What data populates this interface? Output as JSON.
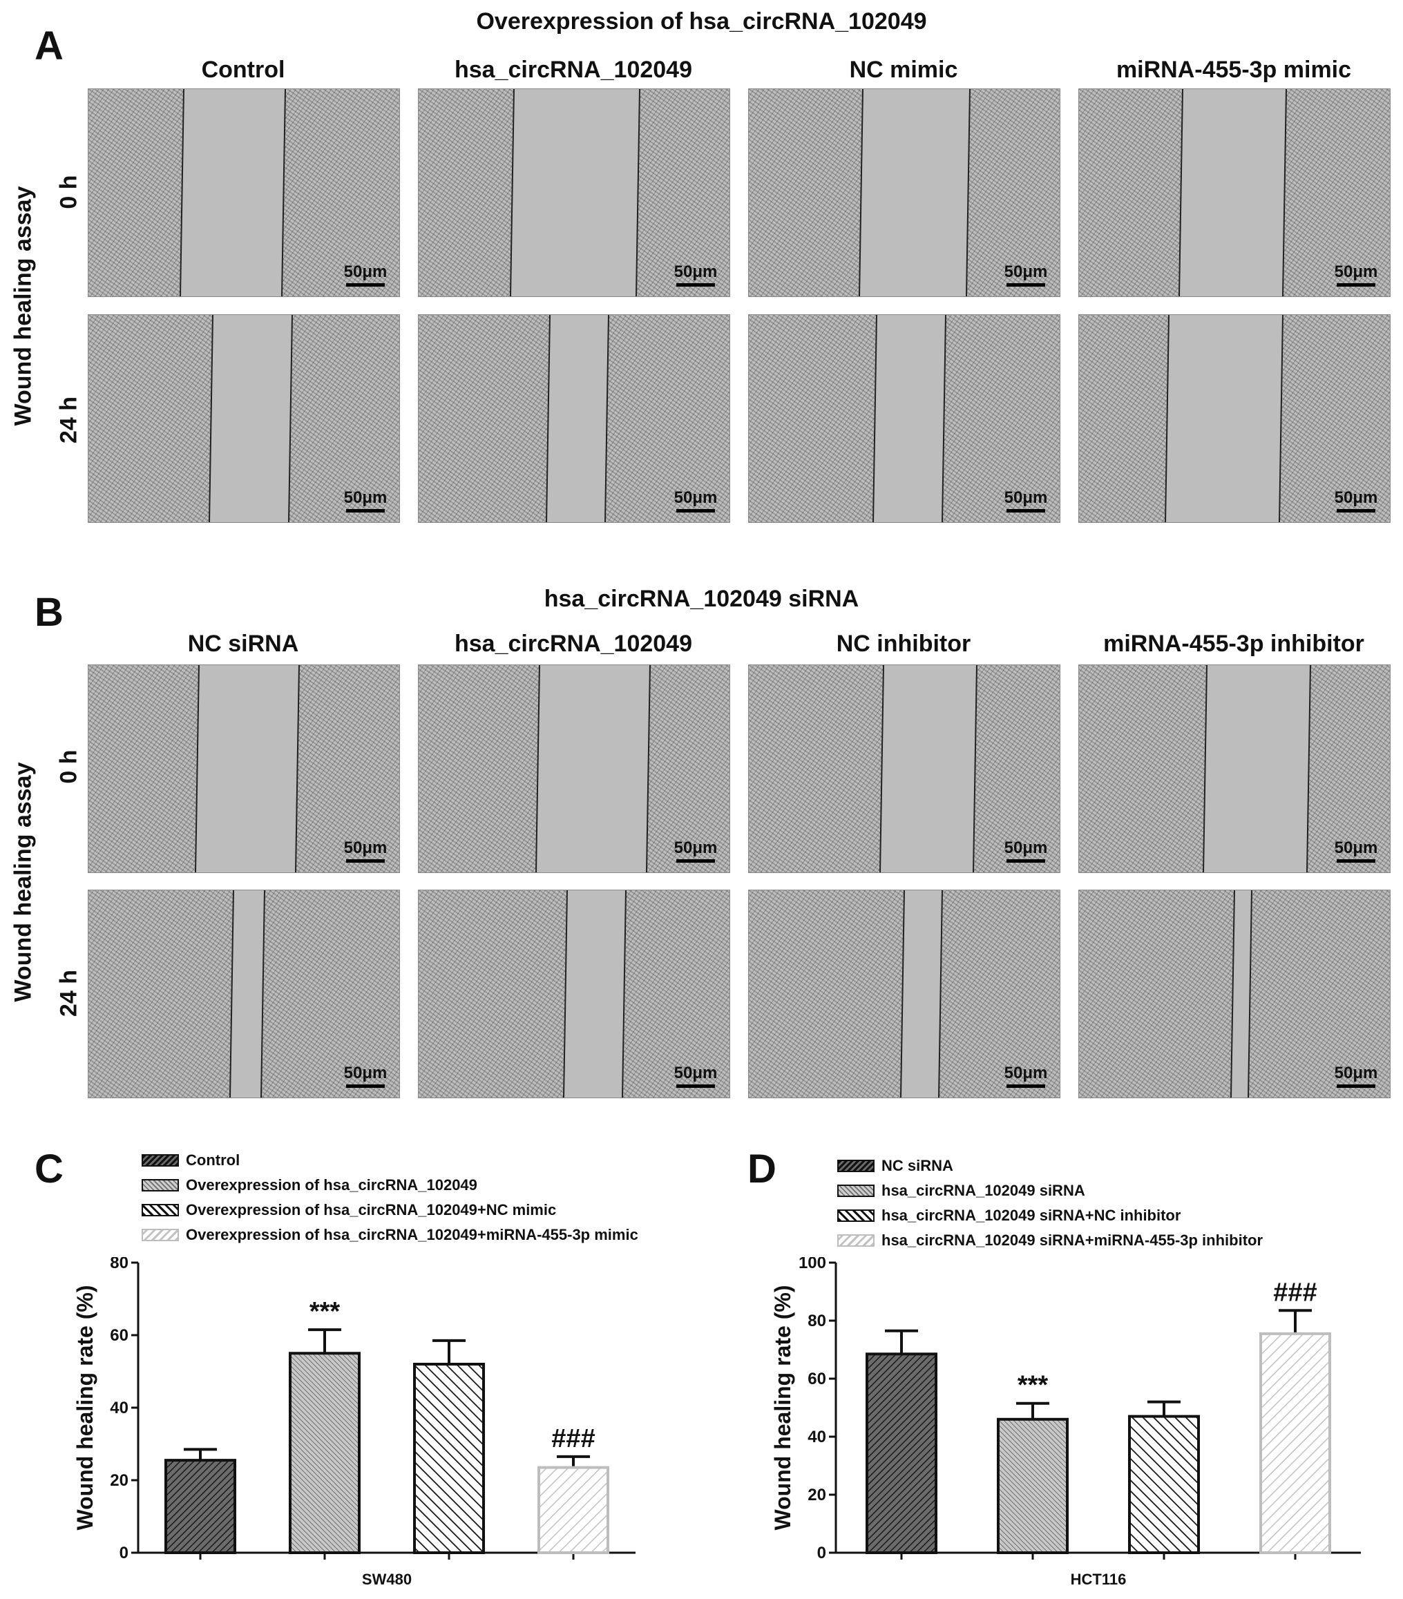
{
  "panels": {
    "A": {
      "letter": "A",
      "title": "Overexpression of hsa_circRNA_102049",
      "row_axis_label": "Wound healing assay",
      "columns": [
        "Control",
        "hsa_circRNA_102049",
        "NC mimic",
        "miRNA-455-3p mimic"
      ],
      "rows": [
        "0 h",
        "24 h"
      ],
      "scale_bar": "50μm"
    },
    "B": {
      "letter": "B",
      "title": "hsa_circRNA_102049 siRNA",
      "row_axis_label": "Wound healing assay",
      "columns": [
        "NC siRNA",
        "hsa_circRNA_102049",
        "NC inhibitor",
        "miRNA-455-3p inhibitor"
      ],
      "rows": [
        "0 h",
        "24 h"
      ],
      "scale_bar": "50μm"
    },
    "C": {
      "letter": "C"
    },
    "D": {
      "letter": "D"
    }
  },
  "chart_data": [
    {
      "type": "bar",
      "panel": "C",
      "categories": [
        "Control",
        "Overexpression of hsa_circRNA_102049",
        "Overexpression of hsa_circRNA_102049+NC mimic",
        "Overexpression of hsa_circRNA_102049+miRNA-455-3p mimic"
      ],
      "values": [
        25.5,
        55,
        52,
        23.5
      ],
      "errors": [
        3,
        6.5,
        6.5,
        3
      ],
      "annotations": [
        "",
        "***",
        "",
        "###"
      ],
      "xlabel": "SW480",
      "ylabel": "Wound healing rate (%)",
      "ylim": [
        0,
        80
      ],
      "yticks": [
        0,
        20,
        40,
        60,
        80
      ],
      "legend": "top",
      "fill_colors": [
        "#6b6b6b",
        "#c8c8c8",
        "#ffffff",
        "#ffffff"
      ],
      "hatch_colors": [
        "#1a1a1a",
        "#6e6e6e",
        "#111111",
        "#c2c2c2"
      ],
      "border_colors": [
        "#111111",
        "#111111",
        "#111111",
        "#bdbdbd"
      ],
      "hatch_styles": [
        "dense-forward",
        "dense-back",
        "back",
        "forward"
      ]
    },
    {
      "type": "bar",
      "panel": "D",
      "categories": [
        "NC siRNA",
        "hsa_circRNA_102049 siRNA",
        "hsa_circRNA_102049 siRNA+NC inhibitor",
        "hsa_circRNA_102049 siRNA+miRNA-455-3p inhibitor"
      ],
      "values": [
        68.5,
        46,
        47,
        75.5
      ],
      "errors": [
        8,
        5.5,
        5,
        8
      ],
      "annotations": [
        "",
        "***",
        "",
        "###"
      ],
      "xlabel": "HCT116",
      "ylabel": "Wound healing rate (%)",
      "ylim": [
        0,
        100
      ],
      "yticks": [
        0,
        20,
        40,
        60,
        80,
        100
      ],
      "legend": "top",
      "fill_colors": [
        "#6b6b6b",
        "#c8c8c8",
        "#ffffff",
        "#ffffff"
      ],
      "hatch_colors": [
        "#1a1a1a",
        "#6e6e6e",
        "#111111",
        "#c2c2c2"
      ],
      "border_colors": [
        "#111111",
        "#111111",
        "#111111",
        "#bdbdbd"
      ],
      "hatch_styles": [
        "dense-forward",
        "dense-back",
        "back",
        "forward"
      ]
    }
  ]
}
